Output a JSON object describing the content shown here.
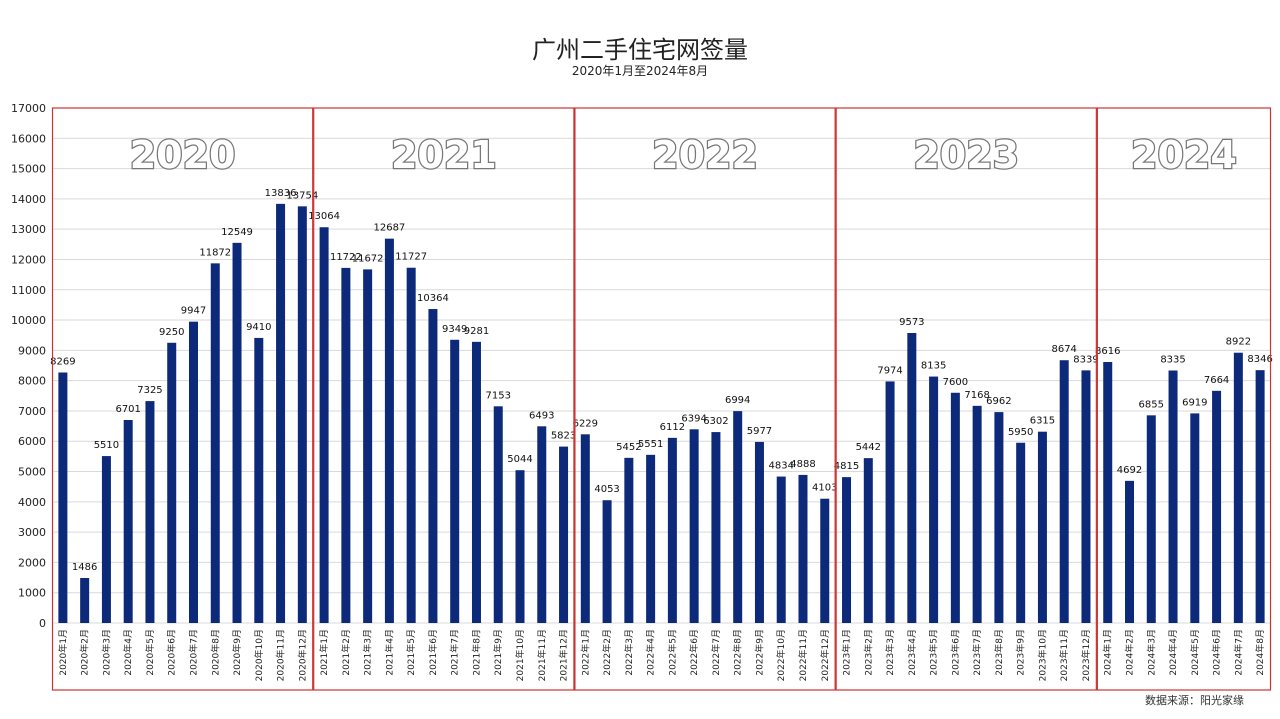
{
  "chart_data": {
    "type": "bar",
    "title": "广州二手住宅网签量",
    "subtitle": "2020年1月至2024年8月",
    "source": "数据来源：阳光家缘",
    "ylim": [
      0,
      17000
    ],
    "yticks": [
      0,
      1000,
      2000,
      3000,
      4000,
      5000,
      6000,
      7000,
      8000,
      9000,
      10000,
      11000,
      12000,
      13000,
      14000,
      15000,
      16000,
      17000
    ],
    "grid": true,
    "bar_color": "#0d2a7a",
    "box_color": "#cc3333",
    "groups": [
      {
        "label": "2020",
        "start": 0,
        "end": 11
      },
      {
        "label": "2021",
        "start": 12,
        "end": 23
      },
      {
        "label": "2022",
        "start": 24,
        "end": 35
      },
      {
        "label": "2023",
        "start": 36,
        "end": 47
      },
      {
        "label": "2024",
        "start": 48,
        "end": 55
      }
    ],
    "categories": [
      "2020年1月",
      "2020年2月",
      "2020年3月",
      "2020年4月",
      "2020年5月",
      "2020年6月",
      "2020年7月",
      "2020年8月",
      "2020年9月",
      "2020年10月",
      "2020年11月",
      "2020年12月",
      "2021年1月",
      "2021年2月",
      "2021年3月",
      "2021年4月",
      "2021年5月",
      "2021年6月",
      "2021年7月",
      "2021年8月",
      "2021年9月",
      "2021年10月",
      "2021年11月",
      "2021年12月",
      "2022年1月",
      "2022年2月",
      "2022年3月",
      "2022年4月",
      "2022年5月",
      "2022年6月",
      "2022年7月",
      "2022年8月",
      "2022年9月",
      "2022年10月",
      "2022年11月",
      "2022年12月",
      "2023年1月",
      "2023年2月",
      "2023年3月",
      "2023年4月",
      "2023年5月",
      "2023年6月",
      "2023年7月",
      "2023年8月",
      "2023年9月",
      "2023年10月",
      "2023年11月",
      "2023年12月",
      "2024年1月",
      "2024年2月",
      "2024年3月",
      "2024年4月",
      "2024年5月",
      "2024年6月",
      "2024年7月",
      "2024年8月"
    ],
    "values": [
      8269,
      1486,
      5510,
      6701,
      7325,
      9250,
      9947,
      11872,
      12549,
      9410,
      13836,
      13754,
      13064,
      11722,
      11672,
      12687,
      11727,
      10364,
      9349,
      9281,
      7153,
      5044,
      6493,
      5823,
      6229,
      4053,
      5452,
      5551,
      6112,
      6394,
      6302,
      6994,
      5977,
      4834,
      4888,
      4103,
      4815,
      5442,
      7974,
      9573,
      8135,
      7600,
      7168,
      6962,
      5950,
      6315,
      8674,
      8339,
      8616,
      4692,
      6855,
      8335,
      6919,
      7664,
      8922,
      8346
    ]
  }
}
